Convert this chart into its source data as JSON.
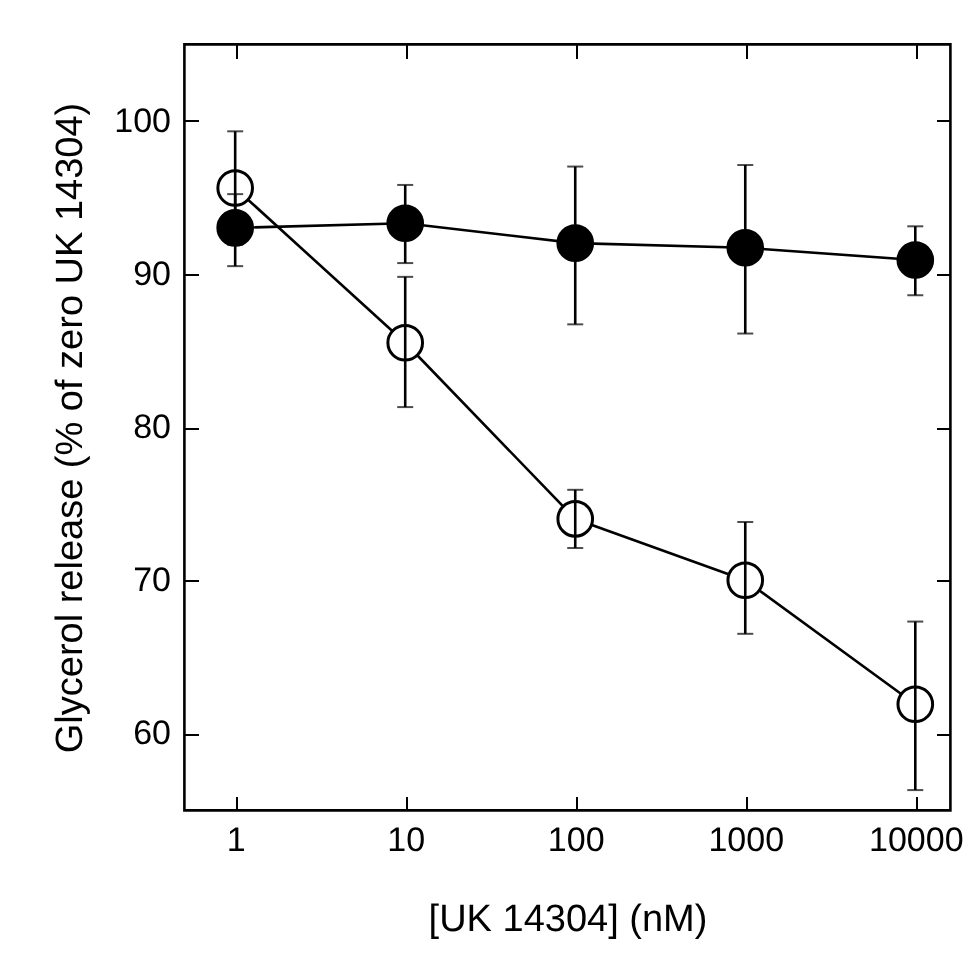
{
  "chart_data": {
    "type": "line",
    "xlabel": "[UK 14304] (nM)",
    "ylabel": "Glycerol release (% of zero UK 14304)",
    "log": "x",
    "x": [
      1,
      10,
      100,
      1000,
      10000
    ],
    "xlim": [
      0.5,
      16000
    ],
    "xticks": [
      1,
      10,
      100,
      1000,
      10000
    ],
    "ylim": [
      55,
      105
    ],
    "yticks": [
      60,
      70,
      80,
      90,
      100
    ],
    "grid": false,
    "marker": "circle",
    "line_style": "solid",
    "series": [
      {
        "color": "#000000",
        "values": [
          93,
          93.3,
          92,
          91.7,
          90.9
        ],
        "errors": [
          [
            90.5,
            95.2
          ],
          [
            90.7,
            95.8
          ],
          [
            86.7,
            97
          ],
          [
            86.1,
            97.1
          ],
          [
            88.6,
            93.1
          ]
        ]
      },
      {
        "color": "#ffffff",
        "values": [
          95.6,
          85.5,
          74,
          70,
          61.9
        ],
        "errors": [
          [
            91.9,
            99.3
          ],
          [
            81.3,
            89.8
          ],
          [
            72.1,
            75.9
          ],
          [
            66.5,
            73.8
          ],
          [
            56.3,
            67.3
          ]
        ]
      }
    ]
  }
}
